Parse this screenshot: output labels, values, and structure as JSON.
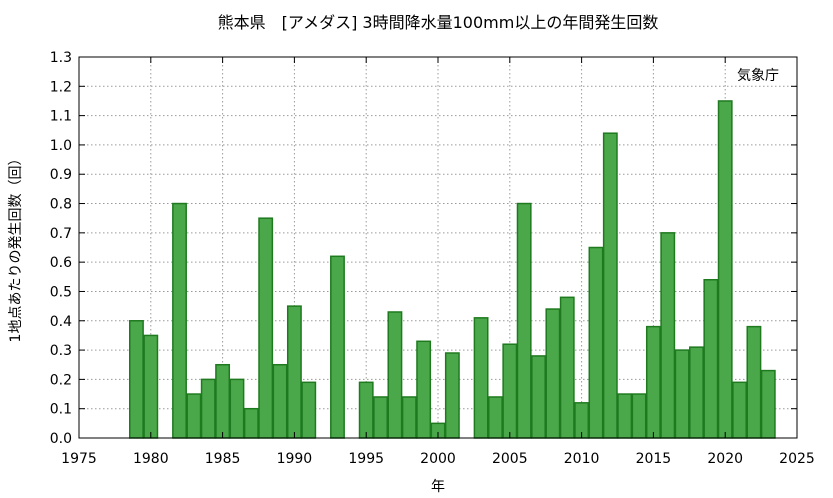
{
  "chart_data": {
    "type": "bar",
    "title": "熊本県　[アメダス] 3時間降水量100mm以上の年間発生回数",
    "annotation": "気象庁",
    "xlabel": "年",
    "ylabel": "1地点あたりの発生回数（回）",
    "xlim": [
      1975,
      2025
    ],
    "ylim": [
      0.0,
      1.3
    ],
    "x_ticks": [
      1975,
      1980,
      1985,
      1990,
      1995,
      2000,
      2005,
      2010,
      2015,
      2020,
      2025
    ],
    "y_ticks": [
      "0.0",
      "0.1",
      "0.2",
      "0.3",
      "0.4",
      "0.5",
      "0.6",
      "0.7",
      "0.8",
      "0.9",
      "1.0",
      "1.1",
      "1.2",
      "1.3"
    ],
    "grid": true,
    "bar_color": "#4aa84a",
    "bar_edge_color": "#1f7a1f",
    "series": [
      {
        "x": [
          1979,
          1980,
          1981,
          1982,
          1983,
          1984,
          1985,
          1986,
          1987,
          1988,
          1989,
          1990,
          1991,
          1992,
          1993,
          1994,
          1995,
          1996,
          1997,
          1998,
          1999,
          2000,
          2001,
          2002,
          2003,
          2004,
          2005,
          2006,
          2007,
          2008,
          2009,
          2010,
          2011,
          2012,
          2013,
          2014,
          2015,
          2016,
          2017,
          2018,
          2019,
          2020,
          2021,
          2022,
          2023
        ],
        "values": [
          0.4,
          0.35,
          0.0,
          0.8,
          0.15,
          0.2,
          0.25,
          0.2,
          0.1,
          0.75,
          0.25,
          0.45,
          0.19,
          0.0,
          0.62,
          0.0,
          0.19,
          0.14,
          0.43,
          0.14,
          0.33,
          0.05,
          0.29,
          0.0,
          0.41,
          0.14,
          0.32,
          0.8,
          0.28,
          0.44,
          0.48,
          0.12,
          0.65,
          1.04,
          0.15,
          0.15,
          0.38,
          0.7,
          0.3,
          0.31,
          0.54,
          1.15,
          0.19,
          0.38,
          0.23
        ]
      }
    ]
  }
}
